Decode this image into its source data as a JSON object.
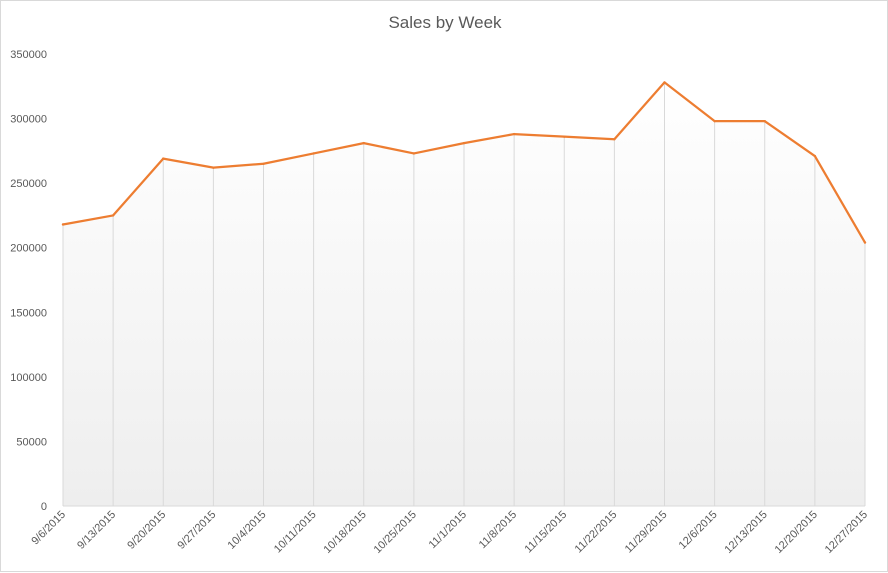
{
  "chart_data": {
    "type": "area",
    "title": "Sales by Week",
    "xlabel": "",
    "ylabel": "",
    "categories": [
      "9/6/2015",
      "9/13/2015",
      "9/20/2015",
      "9/27/2015",
      "10/4/2015",
      "10/11/2015",
      "10/18/2015",
      "10/25/2015",
      "11/1/2015",
      "11/8/2015",
      "11/15/2015",
      "11/22/2015",
      "11/29/2015",
      "12/6/2015",
      "12/13/2015",
      "12/20/2015",
      "12/27/2015"
    ],
    "series": [
      {
        "values": [
          218000,
          225000,
          269000,
          262000,
          265000,
          273000,
          281000,
          273000,
          281000,
          288000,
          286000,
          284000,
          328000,
          298000,
          298000,
          271000,
          204000
        ],
        "color": "#ed7d31"
      }
    ],
    "y_ticks": [
      "0",
      "50000",
      "100000",
      "150000",
      "200000",
      "250000",
      "300000",
      "350000"
    ],
    "ylim": [
      0,
      350000
    ],
    "grid": "vertical",
    "area_fill": "gradient #ffffff to #f0f0f0",
    "legend": "none"
  }
}
